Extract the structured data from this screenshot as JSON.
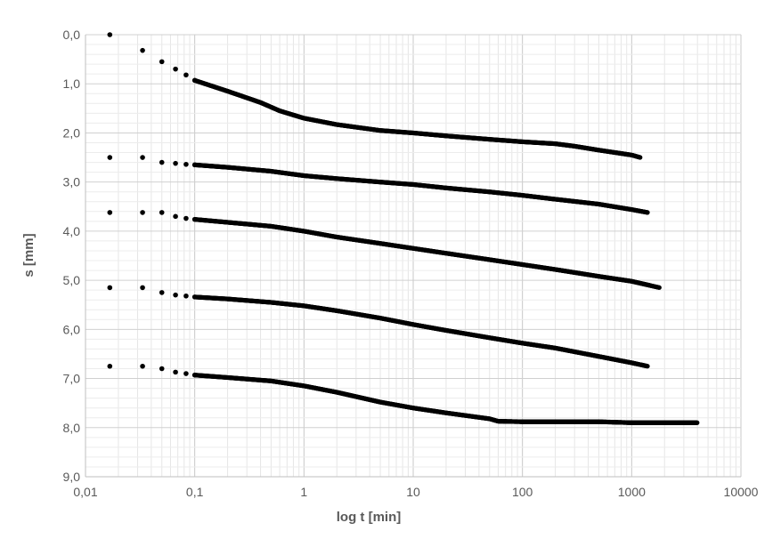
{
  "chart_data": {
    "type": "scatter",
    "title": "",
    "xlabel": "log t [min]",
    "ylabel": "s [mm]",
    "x_scale": "log",
    "xlim": [
      0.01,
      10000
    ],
    "ylim": [
      0,
      9
    ],
    "y_inverted": true,
    "x_ticks": [
      0.01,
      0.1,
      1,
      10,
      100,
      1000,
      10000
    ],
    "x_tick_labels": [
      "0,01",
      "0,1",
      "1",
      "10",
      "100",
      "1000",
      "10000"
    ],
    "y_ticks": [
      0,
      1,
      2,
      3,
      4,
      5,
      6,
      7,
      8,
      9
    ],
    "y_tick_labels": [
      "0,0",
      "1,0",
      "2,0",
      "3,0",
      "4,0",
      "5,0",
      "6,0",
      "7,0",
      "8,0",
      "9,0"
    ],
    "grid": true,
    "legend": "none",
    "marker_color": "#000000",
    "series": [
      {
        "x": [
          0.0167,
          0.0333,
          0.05,
          0.0667,
          0.0833,
          0.1,
          0.2,
          0.4,
          0.6,
          1,
          2,
          5,
          10,
          20,
          50,
          100,
          200,
          300,
          500,
          1000,
          1200
        ],
        "y": [
          0.0,
          0.32,
          0.55,
          0.7,
          0.82,
          0.93,
          1.15,
          1.38,
          1.55,
          1.7,
          1.83,
          1.95,
          2.0,
          2.06,
          2.13,
          2.18,
          2.22,
          2.27,
          2.35,
          2.45,
          2.5
        ]
      },
      {
        "x": [
          0.0167,
          0.0333,
          0.05,
          0.0667,
          0.0833,
          0.1,
          0.2,
          0.5,
          1,
          2,
          5,
          10,
          20,
          50,
          100,
          200,
          500,
          1000,
          1400
        ],
        "y": [
          2.5,
          2.5,
          2.6,
          2.62,
          2.64,
          2.65,
          2.7,
          2.78,
          2.87,
          2.93,
          3.0,
          3.05,
          3.12,
          3.2,
          3.27,
          3.35,
          3.45,
          3.56,
          3.62
        ]
      },
      {
        "x": [
          0.0167,
          0.0333,
          0.05,
          0.0667,
          0.0833,
          0.1,
          0.2,
          0.5,
          1,
          2,
          5,
          10,
          20,
          50,
          100,
          200,
          500,
          1000,
          1800
        ],
        "y": [
          3.62,
          3.62,
          3.62,
          3.7,
          3.74,
          3.76,
          3.82,
          3.9,
          4.0,
          4.12,
          4.25,
          4.35,
          4.45,
          4.58,
          4.68,
          4.78,
          4.92,
          5.02,
          5.15
        ]
      },
      {
        "x": [
          0.0167,
          0.0333,
          0.05,
          0.0667,
          0.0833,
          0.1,
          0.2,
          0.5,
          1,
          2,
          5,
          10,
          20,
          50,
          100,
          200,
          500,
          1000,
          1400
        ],
        "y": [
          5.15,
          5.15,
          5.25,
          5.3,
          5.32,
          5.34,
          5.38,
          5.45,
          5.52,
          5.62,
          5.77,
          5.9,
          6.02,
          6.17,
          6.28,
          6.38,
          6.55,
          6.68,
          6.75
        ]
      },
      {
        "x": [
          0.0167,
          0.0333,
          0.05,
          0.0667,
          0.0833,
          0.1,
          0.2,
          0.5,
          1,
          2,
          5,
          10,
          20,
          50,
          60,
          100,
          200,
          500,
          1000,
          2000,
          4000
        ],
        "y": [
          6.75,
          6.75,
          6.8,
          6.87,
          6.9,
          6.93,
          6.98,
          7.05,
          7.15,
          7.28,
          7.48,
          7.6,
          7.7,
          7.82,
          7.87,
          7.88,
          7.88,
          7.88,
          7.9,
          7.9,
          7.9
        ]
      }
    ]
  }
}
